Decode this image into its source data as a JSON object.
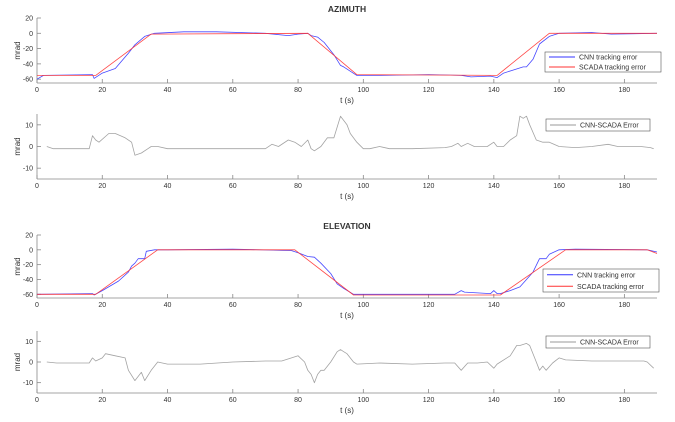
{
  "colors": {
    "cnn": "#3333ff",
    "scada": "#ff3333",
    "diff": "#999999",
    "axis": "#888888"
  },
  "chart_data": [
    {
      "type": "line",
      "title": "AZIMUTH",
      "xlabel": "t (s)",
      "ylabel": "mrad",
      "xlim": [
        0,
        190
      ],
      "ylim": [
        -65,
        20
      ],
      "xticks": [
        0,
        20,
        40,
        60,
        80,
        100,
        120,
        140,
        160,
        180
      ],
      "yticks": [
        20,
        0,
        -20,
        -40,
        -60
      ],
      "legend_position": "right",
      "series": [
        {
          "name": "CNN tracking error",
          "color_key": "cnn",
          "points": [
            [
              0,
              -60
            ],
            [
              2,
              -55
            ],
            [
              17,
              -54
            ],
            [
              17.5,
              -59
            ],
            [
              20,
              -52
            ],
            [
              24,
              -46
            ],
            [
              28,
              -26
            ],
            [
              30,
              -15
            ],
            [
              33,
              -4
            ],
            [
              36,
              0
            ],
            [
              45,
              2
            ],
            [
              55,
              2
            ],
            [
              70,
              0
            ],
            [
              77,
              -3
            ],
            [
              80,
              -1
            ],
            [
              83,
              0
            ],
            [
              84,
              -3
            ],
            [
              86,
              -5
            ],
            [
              88,
              -12
            ],
            [
              91,
              -28
            ],
            [
              93,
              -42
            ],
            [
              94,
              -44
            ],
            [
              98,
              -55
            ],
            [
              105,
              -55
            ],
            [
              120,
              -54
            ],
            [
              130,
              -55
            ],
            [
              133,
              -57
            ],
            [
              139,
              -56
            ],
            [
              141,
              -58
            ],
            [
              143,
              -52
            ],
            [
              146,
              -48
            ],
            [
              149,
              -44
            ],
            [
              150,
              -44
            ],
            [
              152,
              -34
            ],
            [
              154,
              -14
            ],
            [
              157,
              -4
            ],
            [
              160,
              0
            ],
            [
              170,
              1
            ],
            [
              176,
              -1
            ],
            [
              190,
              0
            ]
          ]
        },
        {
          "name": "SCADA tracking error",
          "color_key": "scada",
          "points": [
            [
              0,
              -55
            ],
            [
              18,
              -55
            ],
            [
              35,
              -1
            ],
            [
              83,
              0
            ],
            [
              98,
              -54
            ],
            [
              141,
              -55
            ],
            [
              157,
              0
            ],
            [
              190,
              0
            ]
          ]
        }
      ]
    },
    {
      "type": "line",
      "title": "",
      "xlabel": "t (s)",
      "ylabel": "mrad",
      "xlim": [
        0,
        190
      ],
      "ylim": [
        -15,
        15
      ],
      "xticks": [
        0,
        20,
        40,
        60,
        80,
        100,
        120,
        140,
        160,
        180
      ],
      "yticks": [
        10,
        0,
        -10
      ],
      "legend_position": "top-right",
      "series": [
        {
          "name": "CNN-SCADA Error",
          "color_key": "diff",
          "points": [
            [
              3,
              0
            ],
            [
              5,
              -1
            ],
            [
              10,
              -1
            ],
            [
              16,
              -1
            ],
            [
              17,
              5
            ],
            [
              18,
              3
            ],
            [
              19,
              2
            ],
            [
              22,
              6
            ],
            [
              24,
              6
            ],
            [
              27,
              4
            ],
            [
              29,
              2
            ],
            [
              30,
              -4
            ],
            [
              32,
              -3
            ],
            [
              34,
              -1
            ],
            [
              35,
              0
            ],
            [
              37,
              0
            ],
            [
              40,
              -1
            ],
            [
              50,
              -1
            ],
            [
              60,
              -1
            ],
            [
              70,
              -1
            ],
            [
              72,
              1
            ],
            [
              74,
              0
            ],
            [
              77,
              3
            ],
            [
              79,
              2
            ],
            [
              81,
              0
            ],
            [
              83,
              3
            ],
            [
              84,
              -1
            ],
            [
              85,
              -2
            ],
            [
              87,
              0
            ],
            [
              89,
              4
            ],
            [
              91,
              4
            ],
            [
              93,
              14
            ],
            [
              95,
              10
            ],
            [
              96,
              6
            ],
            [
              98,
              2
            ],
            [
              100,
              -1
            ],
            [
              102,
              -1
            ],
            [
              105,
              0
            ],
            [
              108,
              -1
            ],
            [
              115,
              -1
            ],
            [
              125,
              -0.5
            ],
            [
              127,
              0
            ],
            [
              129,
              1.5
            ],
            [
              130,
              0
            ],
            [
              132,
              1.5
            ],
            [
              134,
              0
            ],
            [
              138,
              0
            ],
            [
              140,
              2
            ],
            [
              141,
              0
            ],
            [
              143,
              0
            ],
            [
              145,
              3
            ],
            [
              147,
              5
            ],
            [
              148,
              14
            ],
            [
              149,
              13
            ],
            [
              150,
              14
            ],
            [
              151,
              10
            ],
            [
              153,
              3
            ],
            [
              155,
              2
            ],
            [
              157,
              2
            ],
            [
              160,
              0
            ],
            [
              165,
              -0.5
            ],
            [
              170,
              0
            ],
            [
              175,
              1
            ],
            [
              178,
              0
            ],
            [
              185,
              0
            ],
            [
              188,
              -0.5
            ],
            [
              189,
              -1
            ]
          ]
        }
      ]
    },
    {
      "type": "line",
      "title": "ELEVATION",
      "xlabel": "t (s)",
      "ylabel": "mrad",
      "xlim": [
        0,
        190
      ],
      "ylim": [
        -65,
        20
      ],
      "xticks": [
        0,
        20,
        40,
        60,
        80,
        100,
        120,
        140,
        160,
        180
      ],
      "yticks": [
        20,
        0,
        -20,
        -40,
        -60
      ],
      "legend_position": "right",
      "series": [
        {
          "name": "CNN tracking error",
          "color_key": "cnn",
          "points": [
            [
              0,
              -60
            ],
            [
              17,
              -59
            ],
            [
              17.5,
              -61
            ],
            [
              20,
              -55
            ],
            [
              25,
              -42
            ],
            [
              28,
              -30
            ],
            [
              29,
              -22
            ],
            [
              30,
              -18
            ],
            [
              31,
              -12
            ],
            [
              33,
              -12
            ],
            [
              33.5,
              -2
            ],
            [
              36,
              0
            ],
            [
              40,
              0
            ],
            [
              60,
              1
            ],
            [
              78,
              -1
            ],
            [
              80,
              -4
            ],
            [
              83,
              -9
            ],
            [
              85,
              -10
            ],
            [
              87,
              -18
            ],
            [
              90,
              -32
            ],
            [
              92,
              -46
            ],
            [
              94,
              -52
            ],
            [
              97,
              -60
            ],
            [
              110,
              -60
            ],
            [
              128,
              -60
            ],
            [
              130,
              -55
            ],
            [
              131,
              -57
            ],
            [
              139,
              -59
            ],
            [
              140,
              -55
            ],
            [
              141,
              -59
            ],
            [
              142,
              -59
            ],
            [
              145,
              -55
            ],
            [
              148,
              -50
            ],
            [
              150,
              -40
            ],
            [
              152,
              -30
            ],
            [
              154,
              -12
            ],
            [
              156,
              -12
            ],
            [
              157,
              -6
            ],
            [
              160,
              0
            ],
            [
              165,
              1
            ],
            [
              187,
              0
            ],
            [
              190,
              -3
            ]
          ]
        },
        {
          "name": "SCADA tracking error",
          "color_key": "scada",
          "points": [
            [
              0,
              -60
            ],
            [
              18,
              -60
            ],
            [
              37,
              0
            ],
            [
              79,
              0
            ],
            [
              97,
              -61
            ],
            [
              142,
              -61
            ],
            [
              162,
              0
            ],
            [
              187,
              0
            ],
            [
              190,
              -5
            ]
          ]
        }
      ]
    },
    {
      "type": "line",
      "title": "",
      "xlabel": "t (s)",
      "ylabel": "mrad",
      "xlim": [
        0,
        190
      ],
      "ylim": [
        -15,
        15
      ],
      "xticks": [
        0,
        20,
        40,
        60,
        80,
        100,
        120,
        140,
        160,
        180
      ],
      "yticks": [
        10,
        0,
        -10
      ],
      "legend_position": "top-right",
      "series": [
        {
          "name": "CNN-SCADA Error",
          "color_key": "diff",
          "points": [
            [
              3,
              0
            ],
            [
              6,
              -0.5
            ],
            [
              16,
              -0.5
            ],
            [
              17,
              2
            ],
            [
              18,
              0.5
            ],
            [
              20,
              2
            ],
            [
              21,
              4
            ],
            [
              24,
              3
            ],
            [
              27,
              2
            ],
            [
              28,
              -4
            ],
            [
              30,
              -9
            ],
            [
              32,
              -5
            ],
            [
              33,
              -9
            ],
            [
              35,
              -4
            ],
            [
              37,
              0
            ],
            [
              40,
              -1
            ],
            [
              50,
              -1
            ],
            [
              60,
              0
            ],
            [
              70,
              0.5
            ],
            [
              75,
              0.5
            ],
            [
              78,
              2
            ],
            [
              80,
              3
            ],
            [
              82,
              0
            ],
            [
              83,
              -4
            ],
            [
              84,
              -6
            ],
            [
              85,
              -10
            ],
            [
              86,
              -6
            ],
            [
              87,
              -4
            ],
            [
              88,
              -4
            ],
            [
              90,
              0
            ],
            [
              92,
              5
            ],
            [
              93,
              6
            ],
            [
              94,
              5
            ],
            [
              95,
              4
            ],
            [
              97,
              0
            ],
            [
              98,
              -1
            ],
            [
              105,
              -0.5
            ],
            [
              115,
              -1
            ],
            [
              125,
              -0.5
            ],
            [
              128,
              -0.5
            ],
            [
              130,
              -4
            ],
            [
              132,
              -0.5
            ],
            [
              135,
              -0.5
            ],
            [
              138,
              0
            ],
            [
              140,
              -3
            ],
            [
              141,
              -1
            ],
            [
              145,
              3
            ],
            [
              147,
              8
            ],
            [
              148,
              8
            ],
            [
              150,
              9
            ],
            [
              151,
              8
            ],
            [
              153,
              0
            ],
            [
              154,
              -4
            ],
            [
              155,
              -2
            ],
            [
              156,
              -4
            ],
            [
              158,
              -0.5
            ],
            [
              160,
              2
            ],
            [
              162,
              1
            ],
            [
              170,
              0.5
            ],
            [
              180,
              0.5
            ],
            [
              186,
              0.5
            ],
            [
              187,
              0
            ],
            [
              189,
              -3
            ]
          ]
        }
      ]
    }
  ]
}
